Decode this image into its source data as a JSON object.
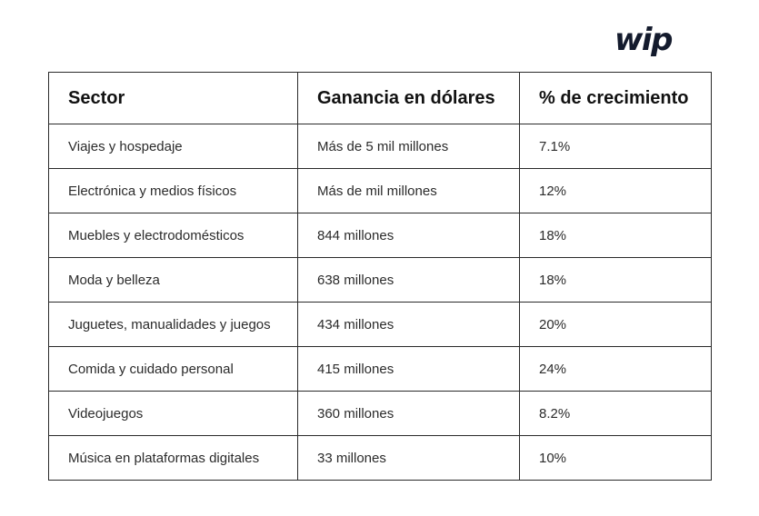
{
  "brand": {
    "logo_text": "wip"
  },
  "table": {
    "headers": [
      "Sector",
      "Ganancia en dólares",
      "% de crecimiento"
    ],
    "rows": [
      [
        "Viajes y hospedaje",
        "Más de 5 mil millones",
        "7.1%"
      ],
      [
        "Electrónica y medios físicos",
        "Más de mil millones",
        "12%"
      ],
      [
        "Muebles y electrodomésticos",
        "844 millones",
        "18%"
      ],
      [
        "Moda y belleza",
        "638 millones",
        "18%"
      ],
      [
        "Juguetes, manualidades y juegos",
        "434 millones",
        "20%"
      ],
      [
        "Comida y cuidado personal",
        "415 millones",
        "24%"
      ],
      [
        "Videojuegos",
        "360 millones",
        "8.2%"
      ],
      [
        "Música en plataformas digitales",
        "33 millones",
        "10%"
      ]
    ]
  }
}
